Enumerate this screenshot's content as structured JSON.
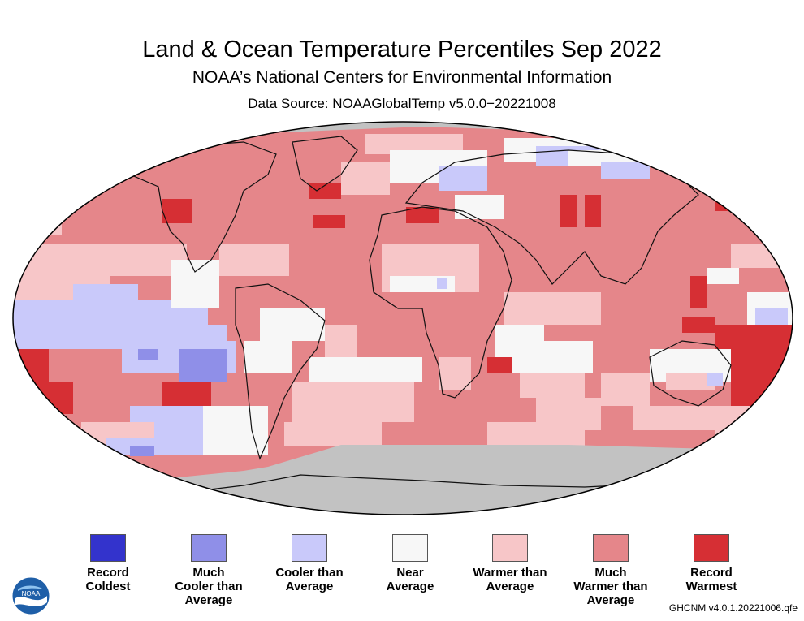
{
  "header": {
    "title": "Land & Ocean Temperature Percentiles Sep 2022",
    "subtitle": "NOAA’s National Centers for Environmental Information",
    "source": "Data Source: NOAAGlobalTemp v5.0.0−20221008"
  },
  "colors": {
    "record_coldest": "#3333cc",
    "much_cooler": "#8f8fe8",
    "cooler": "#c9c9fa",
    "near": "#f7f7f7",
    "warmer": "#f7c6c8",
    "much_warmer": "#e5868a",
    "record_warmest": "#d62f34",
    "no_data": "#c2c2c2"
  },
  "legend": [
    {
      "label": "Record\nColdest",
      "color_key": "record_coldest"
    },
    {
      "label": "Much\nCooler than\nAverage",
      "color_key": "much_cooler"
    },
    {
      "label": "Cooler than\nAverage",
      "color_key": "cooler"
    },
    {
      "label": "Near\nAverage",
      "color_key": "near"
    },
    {
      "label": "Warmer than\nAverage",
      "color_key": "warmer"
    },
    {
      "label": "Much\nWarmer than\nAverage",
      "color_key": "much_warmer"
    },
    {
      "label": "Record\nWarmest",
      "color_key": "record_warmest"
    }
  ],
  "footnote": "GHCNM v4.0.1.20221006.qfe",
  "logo": {
    "text": "NOAA",
    "icon": "noaa-logo-icon"
  }
}
